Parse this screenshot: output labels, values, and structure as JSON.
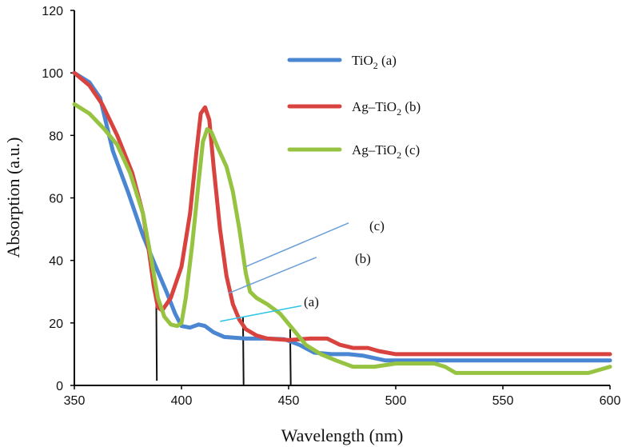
{
  "chart_data": {
    "type": "line",
    "title": "",
    "xlabel": "Wavelength (nm)",
    "ylabel": "Absorption (a.u.)",
    "xlim": [
      350,
      600
    ],
    "ylim": [
      0,
      120
    ],
    "x_ticks": [
      350,
      400,
      450,
      500,
      550,
      600
    ],
    "y_ticks": [
      0,
      20,
      40,
      60,
      80,
      100,
      120
    ],
    "grid": false,
    "legend_position": "top-right",
    "series": [
      {
        "name": "TiO2 (a)",
        "legend_main": "TiO",
        "legend_sub": "2",
        "legend_tail": " (a)",
        "color": "#4a86d1",
        "points": [
          [
            350,
            100
          ],
          [
            357,
            97
          ],
          [
            362,
            92
          ],
          [
            368,
            75
          ],
          [
            375,
            62
          ],
          [
            382,
            48
          ],
          [
            388,
            38
          ],
          [
            393,
            30
          ],
          [
            397,
            23
          ],
          [
            400,
            19
          ],
          [
            404,
            18.5
          ],
          [
            408,
            19.5
          ],
          [
            411,
            19
          ],
          [
            415,
            17
          ],
          [
            420,
            15.5
          ],
          [
            430,
            15
          ],
          [
            440,
            15
          ],
          [
            448,
            14.8
          ],
          [
            455,
            13
          ],
          [
            462,
            10.5
          ],
          [
            470,
            10
          ],
          [
            478,
            10
          ],
          [
            485,
            9.5
          ],
          [
            495,
            8
          ],
          [
            505,
            8
          ],
          [
            550,
            8
          ],
          [
            600,
            8
          ]
        ]
      },
      {
        "name": "Ag–TiO2 (b)",
        "legend_main": "Ag–TiO",
        "legend_sub": "2",
        "legend_tail": " (b)",
        "color": "#d9433f",
        "points": [
          [
            350,
            100
          ],
          [
            357,
            96
          ],
          [
            363,
            90
          ],
          [
            370,
            80
          ],
          [
            377,
            68
          ],
          [
            382,
            55
          ],
          [
            385,
            42
          ],
          [
            387,
            32
          ],
          [
            389,
            25
          ],
          [
            391,
            24
          ],
          [
            395,
            28
          ],
          [
            400,
            38
          ],
          [
            404,
            55
          ],
          [
            407,
            75
          ],
          [
            409,
            87
          ],
          [
            411,
            89
          ],
          [
            413,
            85
          ],
          [
            415,
            70
          ],
          [
            418,
            50
          ],
          [
            421,
            35
          ],
          [
            424,
            26
          ],
          [
            427,
            21
          ],
          [
            430,
            18
          ],
          [
            435,
            16
          ],
          [
            440,
            15
          ],
          [
            450,
            14.5
          ],
          [
            460,
            15
          ],
          [
            468,
            15
          ],
          [
            474,
            13
          ],
          [
            480,
            12
          ],
          [
            487,
            12
          ],
          [
            492,
            11
          ],
          [
            500,
            10
          ],
          [
            550,
            10
          ],
          [
            600,
            10
          ]
        ]
      },
      {
        "name": "Ag–TiO2 (c)",
        "legend_main": "Ag–TiO",
        "legend_sub": "2",
        "legend_tail": " (c)",
        "color": "#96c442",
        "points": [
          [
            350,
            90
          ],
          [
            357,
            87
          ],
          [
            364,
            82
          ],
          [
            370,
            77
          ],
          [
            376,
            68
          ],
          [
            382,
            55
          ],
          [
            386,
            40
          ],
          [
            389,
            28
          ],
          [
            392,
            22
          ],
          [
            395,
            19.5
          ],
          [
            398,
            19
          ],
          [
            400,
            20
          ],
          [
            402,
            28
          ],
          [
            405,
            45
          ],
          [
            408,
            65
          ],
          [
            410,
            78
          ],
          [
            412,
            82
          ],
          [
            414,
            81
          ],
          [
            417,
            76
          ],
          [
            421,
            70
          ],
          [
            424,
            62
          ],
          [
            427,
            50
          ],
          [
            430,
            36
          ],
          [
            432,
            30
          ],
          [
            435,
            28
          ],
          [
            440,
            26
          ],
          [
            446,
            23
          ],
          [
            452,
            18
          ],
          [
            458,
            13
          ],
          [
            465,
            10
          ],
          [
            472,
            8
          ],
          [
            480,
            6
          ],
          [
            490,
            6
          ],
          [
            500,
            7
          ],
          [
            510,
            7
          ],
          [
            518,
            7
          ],
          [
            523,
            6
          ],
          [
            528,
            4
          ],
          [
            540,
            4
          ],
          [
            560,
            4
          ],
          [
            575,
            4
          ],
          [
            590,
            4
          ],
          [
            600,
            6
          ]
        ]
      }
    ],
    "annotations": [
      {
        "label": "(a)",
        "lines": [
          [
            [
              378,
              20.5
            ],
            [
              418,
              20.5
            ],
            [
              450,
              22.5
            ]
          ],
          [
            [
              378,
              20.5
            ],
            [
              425,
              23.5
            ],
            [
              455,
              25
            ]
          ]
        ]
      },
      {
        "label": "(b)",
        "lines": [
          [
            [
              374,
              47
            ],
            [
              395,
              47
            ],
            [
              420,
              33
            ],
            [
              466,
              40
            ]
          ],
          [
            [
              374,
              47
            ],
            [
              400,
              38
            ],
            [
              416,
              36
            ],
            [
              468,
              42
            ]
          ]
        ]
      },
      {
        "label": "(c)",
        "lines": [
          [
            [
              376,
              63
            ],
            [
              402,
              64
            ],
            [
              430,
              57
            ],
            [
              480,
              72
            ]
          ]
        ]
      }
    ]
  }
}
